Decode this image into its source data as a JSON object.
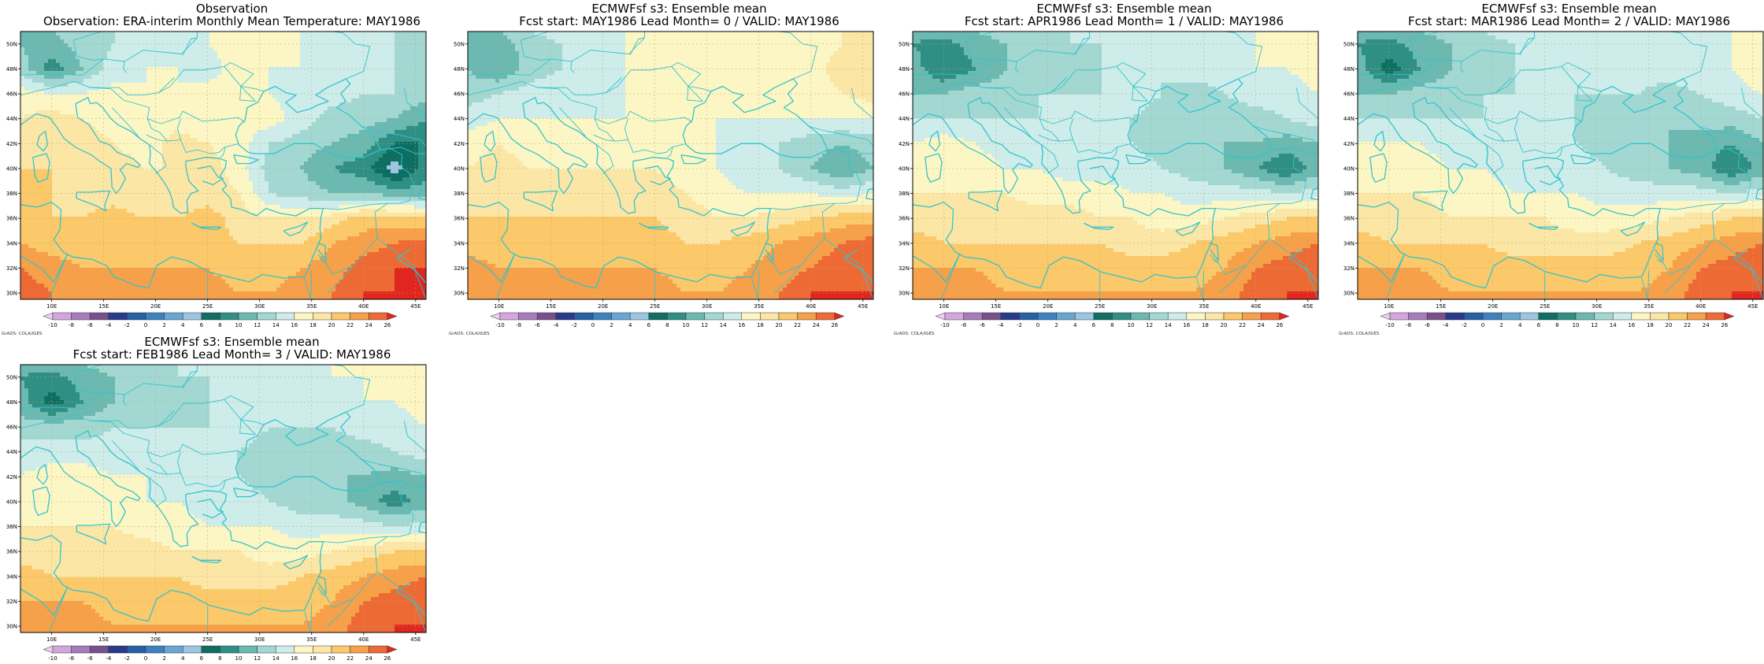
{
  "panels": [
    {
      "title1": "Observation",
      "title2": "Observation: ERA-interim Monthly Mean Temperature: MAY1986",
      "field": "obs"
    },
    {
      "title1": "ECMWFsf s3: Ensemble mean",
      "title2": "Fcst start: MAY1986  Lead Month= 0 / VALID: MAY1986",
      "field": "lead0"
    },
    {
      "title1": "ECMWFsf s3: Ensemble mean",
      "title2": "Fcst start: APR1986  Lead Month= 1 / VALID: MAY1986",
      "field": "lead1"
    },
    {
      "title1": "ECMWFsf s3: Ensemble mean",
      "title2": "Fcst start: MAR1986  Lead Month= 2 / VALID: MAY1986",
      "field": "lead2"
    },
    {
      "title1": "ECMWFsf s3: Ensemble mean",
      "title2": "Fcst start: FEB1986  Lead Month= 3 / VALID: MAY1986",
      "field": "lead3"
    }
  ],
  "map": {
    "lon_range": [
      7,
      46
    ],
    "lat_range": [
      29.5,
      51
    ],
    "lon_ticks": [
      "10E",
      "15E",
      "20E",
      "25E",
      "30E",
      "35E",
      "40E",
      "45E"
    ],
    "lon_tick_values": [
      10,
      15,
      20,
      25,
      30,
      35,
      40,
      45
    ],
    "lat_ticks": [
      "30N",
      "32N",
      "34N",
      "36N",
      "38N",
      "40N",
      "42N",
      "44N",
      "46N",
      "48N",
      "50N"
    ],
    "lat_tick_values": [
      30,
      32,
      34,
      36,
      38,
      40,
      42,
      44,
      46,
      48,
      50
    ],
    "gridlines": "dashed",
    "coastline_color": "#33c4cc"
  },
  "colorbar": {
    "labels": [
      "-10",
      "-8",
      "-6",
      "-4",
      "-2",
      "0",
      "2",
      "4",
      "6",
      "8",
      "10",
      "12",
      "14",
      "16",
      "18",
      "20",
      "22",
      "24",
      "26"
    ],
    "colors": [
      "#eccfee",
      "#d4a6de",
      "#a67bbc",
      "#7a4f8e",
      "#283a8a",
      "#2860a6",
      "#3d82bf",
      "#6aa6d2",
      "#9ac6e2",
      "#0f6e62",
      "#2f8f84",
      "#6bb9b0",
      "#a3d8d2",
      "#cdecea",
      "#fcf6c4",
      "#fce6a6",
      "#fbc86a",
      "#f7a04a",
      "#ee6a35",
      "#e0261f"
    ],
    "source_note": "GrADS: COLA/IGES"
  },
  "chart_data": {
    "type": "heatmap",
    "variable": "Monthly Mean Temperature",
    "valid": "MAY1986",
    "contour_levels": [
      -10,
      -8,
      -6,
      -4,
      -2,
      0,
      2,
      4,
      6,
      8,
      10,
      12,
      14,
      16,
      18,
      20,
      22,
      24,
      26
    ],
    "lats": [
      51,
      50,
      48,
      46,
      44,
      42,
      40,
      38,
      36,
      34,
      32,
      30
    ],
    "lons": [
      7,
      10,
      13,
      16,
      19,
      22,
      25,
      28,
      31,
      34,
      37,
      40,
      43,
      46
    ],
    "fields": {
      "obs": [
        [
          12,
          12,
          13,
          14,
          15,
          15,
          16,
          16,
          16,
          16,
          15,
          15,
          14,
          13
        ],
        [
          12,
          11,
          13,
          14,
          15,
          16,
          16,
          17,
          16,
          16,
          15,
          15,
          14,
          13
        ],
        [
          13,
          9,
          12,
          15,
          16,
          16,
          15,
          17,
          16,
          16,
          16,
          15,
          14,
          14
        ],
        [
          17,
          16,
          16,
          17,
          16,
          16,
          17,
          17,
          16,
          15,
          15,
          14,
          14,
          13
        ],
        [
          18,
          19,
          18,
          17,
          16,
          17,
          16,
          17,
          17,
          15,
          13,
          13,
          12,
          10
        ],
        [
          19,
          20,
          19,
          18,
          17,
          19,
          18,
          17,
          14,
          13,
          12,
          11,
          8,
          8
        ],
        [
          20,
          20,
          19,
          19,
          18,
          18,
          19,
          17,
          13,
          12,
          10,
          9,
          5,
          9
        ],
        [
          20,
          20,
          19,
          19,
          18,
          18,
          19,
          18,
          14,
          13,
          12,
          12,
          11,
          11
        ],
        [
          21,
          20,
          20,
          21,
          20,
          20,
          21,
          19,
          18,
          18,
          19,
          21,
          21,
          20
        ],
        [
          22,
          21,
          21,
          21,
          21,
          21,
          21,
          20,
          20,
          20,
          22,
          23,
          24,
          25
        ],
        [
          24,
          23,
          22,
          22,
          22,
          22,
          22,
          21,
          21,
          22,
          23,
          25,
          26,
          26
        ],
        [
          25,
          24,
          23,
          23,
          23,
          23,
          23,
          22,
          22,
          23,
          24,
          26,
          26,
          26
        ]
      ],
      "lead0": [
        [
          12,
          12,
          14,
          15,
          16,
          16,
          16,
          16,
          16,
          16,
          16,
          17,
          18,
          19
        ],
        [
          12,
          11,
          13,
          14,
          15,
          16,
          16,
          16,
          16,
          16,
          16,
          17,
          18,
          19
        ],
        [
          12,
          10,
          13,
          14,
          15,
          16,
          16,
          16,
          16,
          17,
          17,
          17,
          19,
          20
        ],
        [
          13,
          14,
          15,
          15,
          15,
          16,
          16,
          16,
          17,
          17,
          17,
          17,
          18,
          19
        ],
        [
          15,
          16,
          16,
          16,
          16,
          16,
          16,
          17,
          16,
          16,
          16,
          16,
          16,
          16
        ],
        [
          17,
          18,
          17,
          17,
          17,
          17,
          17,
          16,
          16,
          14,
          14,
          13,
          12,
          13
        ],
        [
          18,
          19,
          18,
          18,
          18,
          18,
          18,
          17,
          16,
          14,
          14,
          12,
          10,
          12
        ],
        [
          19,
          19,
          19,
          20,
          19,
          19,
          19,
          18,
          17,
          16,
          16,
          16,
          15,
          16
        ],
        [
          20,
          20,
          20,
          20,
          20,
          20,
          20,
          19,
          18,
          18,
          19,
          20,
          21,
          21
        ],
        [
          21,
          21,
          21,
          21,
          21,
          21,
          21,
          20,
          20,
          21,
          22,
          23,
          24,
          25
        ],
        [
          23,
          22,
          22,
          22,
          22,
          22,
          22,
          21,
          21,
          22,
          23,
          24,
          25,
          26
        ],
        [
          24,
          23,
          23,
          23,
          23,
          23,
          23,
          22,
          22,
          23,
          24,
          26,
          26,
          26
        ]
      ],
      "lead1": [
        [
          11,
          11,
          12,
          13,
          14,
          14,
          15,
          15,
          15,
          15,
          15,
          16,
          16,
          17
        ],
        [
          10,
          9,
          11,
          12,
          13,
          14,
          14,
          15,
          15,
          15,
          15,
          16,
          16,
          17
        ],
        [
          11,
          8,
          10,
          12,
          13,
          13,
          14,
          15,
          14,
          15,
          15,
          16,
          16,
          17
        ],
        [
          12,
          12,
          13,
          13,
          14,
          14,
          14,
          15,
          14,
          13,
          14,
          15,
          15,
          16
        ],
        [
          14,
          14,
          14,
          14,
          14,
          14,
          14,
          14,
          13,
          13,
          13,
          13,
          14,
          15
        ],
        [
          16,
          17,
          16,
          15,
          15,
          15,
          15,
          14,
          13,
          12,
          12,
          12,
          11,
          12
        ],
        [
          17,
          18,
          17,
          16,
          16,
          15,
          15,
          15,
          14,
          13,
          12,
          10,
          8,
          11
        ],
        [
          18,
          18,
          18,
          18,
          17,
          17,
          17,
          16,
          16,
          15,
          15,
          15,
          14,
          15
        ],
        [
          19,
          19,
          19,
          19,
          19,
          19,
          18,
          18,
          17,
          17,
          18,
          19,
          20,
          20
        ],
        [
          21,
          20,
          20,
          20,
          20,
          20,
          20,
          19,
          19,
          20,
          21,
          22,
          23,
          24
        ],
        [
          22,
          22,
          22,
          21,
          21,
          21,
          21,
          21,
          21,
          21,
          22,
          24,
          25,
          26
        ],
        [
          23,
          23,
          23,
          22,
          22,
          22,
          22,
          22,
          22,
          22,
          23,
          25,
          26,
          26
        ]
      ],
      "lead2": [
        [
          11,
          11,
          12,
          13,
          14,
          15,
          15,
          15,
          15,
          15,
          15,
          15,
          16,
          17
        ],
        [
          10,
          9,
          11,
          12,
          13,
          14,
          14,
          15,
          14,
          15,
          15,
          15,
          16,
          17
        ],
        [
          11,
          7,
          10,
          12,
          13,
          14,
          14,
          14,
          14,
          15,
          15,
          16,
          16,
          18
        ],
        [
          12,
          12,
          13,
          13,
          14,
          14,
          14,
          14,
          14,
          14,
          13,
          14,
          15,
          16
        ],
        [
          14,
          14,
          14,
          14,
          14,
          14,
          14,
          14,
          13,
          13,
          12,
          13,
          13,
          14
        ],
        [
          16,
          16,
          16,
          15,
          15,
          15,
          15,
          14,
          13,
          12,
          12,
          11,
          10,
          12
        ],
        [
          17,
          17,
          17,
          16,
          16,
          15,
          15,
          15,
          14,
          13,
          12,
          11,
          8,
          11
        ],
        [
          18,
          18,
          18,
          17,
          17,
          16,
          16,
          16,
          15,
          15,
          15,
          15,
          14,
          15
        ],
        [
          19,
          19,
          19,
          18,
          18,
          18,
          18,
          17,
          17,
          17,
          18,
          19,
          20,
          20
        ],
        [
          21,
          20,
          20,
          20,
          20,
          19,
          19,
          19,
          19,
          20,
          21,
          22,
          23,
          24
        ],
        [
          22,
          22,
          22,
          21,
          21,
          21,
          21,
          21,
          21,
          21,
          22,
          24,
          25,
          26
        ],
        [
          23,
          23,
          23,
          22,
          22,
          22,
          22,
          22,
          22,
          22,
          23,
          25,
          26,
          26
        ]
      ],
      "lead3": [
        [
          11,
          11,
          12,
          13,
          14,
          14,
          15,
          15,
          15,
          16,
          16,
          16,
          17,
          17
        ],
        [
          10,
          9,
          11,
          12,
          13,
          14,
          14,
          15,
          15,
          15,
          16,
          16,
          17,
          17
        ],
        [
          11,
          7,
          10,
          12,
          13,
          13,
          14,
          14,
          14,
          15,
          15,
          16,
          16,
          17
        ],
        [
          13,
          13,
          13,
          14,
          14,
          14,
          14,
          15,
          14,
          14,
          14,
          15,
          15,
          16
        ],
        [
          15,
          15,
          15,
          15,
          14,
          14,
          14,
          14,
          13,
          13,
          13,
          13,
          14,
          15
        ],
        [
          16,
          17,
          17,
          16,
          16,
          15,
          15,
          14,
          13,
          12,
          12,
          12,
          11,
          12
        ],
        [
          17,
          18,
          17,
          17,
          16,
          16,
          15,
          15,
          14,
          13,
          13,
          11,
          9,
          11
        ],
        [
          18,
          18,
          18,
          18,
          17,
          17,
          16,
          16,
          16,
          15,
          15,
          15,
          14,
          15
        ],
        [
          19,
          19,
          19,
          19,
          19,
          18,
          18,
          18,
          17,
          17,
          18,
          19,
          20,
          20
        ],
        [
          21,
          20,
          20,
          20,
          20,
          20,
          19,
          19,
          19,
          20,
          21,
          22,
          23,
          24
        ],
        [
          22,
          22,
          22,
          21,
          21,
          21,
          21,
          21,
          21,
          21,
          22,
          24,
          25,
          26
        ],
        [
          23,
          23,
          23,
          22,
          22,
          22,
          22,
          22,
          22,
          22,
          23,
          25,
          26,
          26
        ]
      ]
    }
  }
}
